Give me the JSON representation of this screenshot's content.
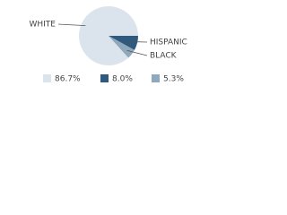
{
  "chart_data": {
    "type": "pie",
    "categories": [
      "WHITE",
      "HISPANIC",
      "BLACK"
    ],
    "values": [
      86.7,
      8.0,
      5.3
    ],
    "value_labels": [
      "86.7%",
      "8.0%",
      "5.3%"
    ],
    "colors": [
      "#dbe4ec",
      "#2f5a7e",
      "#8fa8bc"
    ]
  }
}
